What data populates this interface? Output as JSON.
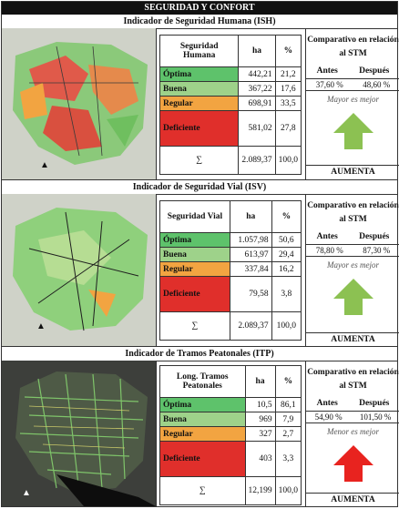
{
  "page_title": "SEGURIDAD Y CONFORT",
  "sections": [
    {
      "title": "Indicador de Seguridad Humana (ISH)",
      "header": {
        "label": "Seguridad Humana",
        "ha": "ha",
        "pct": "%"
      },
      "rows": [
        {
          "label": "Óptima",
          "ha": "442,21",
          "pct": "21,2"
        },
        {
          "label": "Buena",
          "ha": "367,22",
          "pct": "17,6"
        },
        {
          "label": "Regular",
          "ha": "698,91",
          "pct": "33,5"
        },
        {
          "label": "Deficiente",
          "ha": "581,02",
          "pct": "27,8"
        }
      ],
      "total": {
        "symbol": "∑",
        "ha": "2.089,37",
        "pct": "100,0"
      },
      "comparison": {
        "title": "Comparativo en relación al STM",
        "antes_label": "Antes",
        "despues_label": "Después",
        "antes": "37,60 %",
        "despues": "48,60 %",
        "note": "Mayor es mejor",
        "trend": "AUMENTA",
        "arrow_color": "#8cc152"
      }
    },
    {
      "title": "Indicador de Seguridad Vial (ISV)",
      "header": {
        "label": "Seguridad Vial",
        "ha": "ha",
        "pct": "%"
      },
      "rows": [
        {
          "label": "Óptima",
          "ha": "1.057,98",
          "pct": "50,6"
        },
        {
          "label": "Buena",
          "ha": "613,97",
          "pct": "29,4"
        },
        {
          "label": "Regular",
          "ha": "337,84",
          "pct": "16,2"
        },
        {
          "label": "Deficiente",
          "ha": "79,58",
          "pct": "3,8"
        }
      ],
      "total": {
        "symbol": "∑",
        "ha": "2.089,37",
        "pct": "100,0"
      },
      "comparison": {
        "title": "Comparativo en relación al STM",
        "antes_label": "Antes",
        "despues_label": "Después",
        "antes": "78,80 %",
        "despues": "87,30 %",
        "note": "Mayor es mejor",
        "trend": "AUMENTA",
        "arrow_color": "#8cc152"
      }
    },
    {
      "title": "Indicador de Tramos Peatonales (ITP)",
      "header": {
        "label": "Long. Tramos Peatonales",
        "ha": "ha",
        "pct": "%"
      },
      "rows": [
        {
          "label": "Óptima",
          "ha": "10,5",
          "pct": "86,1"
        },
        {
          "label": "Buena",
          "ha": "969",
          "pct": "7,9"
        },
        {
          "label": "Regular",
          "ha": "327",
          "pct": "2,7"
        },
        {
          "label": "Deficiente",
          "ha": "403",
          "pct": "3,3"
        }
      ],
      "total": {
        "symbol": "∑",
        "ha": "12,199",
        "pct": "100,0"
      },
      "comparison": {
        "title": "Comparativo en relación al STM",
        "antes_label": "Antes",
        "despues_label": "Después",
        "antes": "54,90 %",
        "despues": "101,50 %",
        "note": "Menor es mejor",
        "trend": "AUMENTA",
        "arrow_color": "#e8231f"
      }
    }
  ],
  "colors": {
    "optima": "#5ec26b",
    "buena": "#9ed28a",
    "regular": "#f2a441",
    "deficiente": "#e02f2b"
  }
}
